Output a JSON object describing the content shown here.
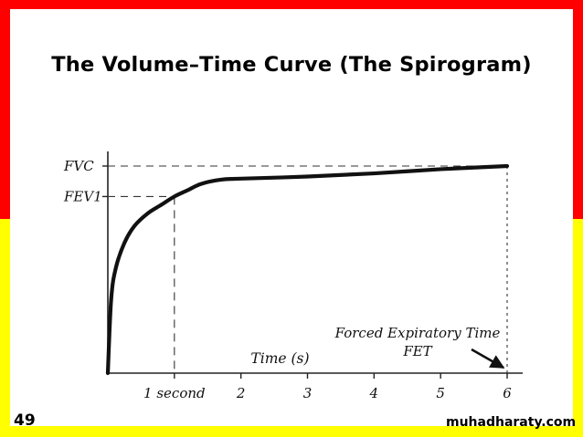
{
  "slide": {
    "title": "The Volume–Time Curve (The Spirogram)",
    "page_number": "49",
    "watermark": "muhadharaty.com",
    "background_color": "#ffff00",
    "top_band_color": "#ff0000"
  },
  "chart_data": {
    "type": "line",
    "title": "",
    "xlabel": "Time (s)",
    "ylabel": "",
    "x_tick_labels": [
      "1 second",
      "2",
      "3",
      "4",
      "5",
      "6"
    ],
    "x_ticks": [
      1,
      2,
      3,
      4,
      5,
      6
    ],
    "y_tick_labels": [
      "FVC",
      "FEV1"
    ],
    "xlim": [
      0,
      6.2
    ],
    "ylim": [
      0,
      1
    ],
    "grid": false,
    "series": [
      {
        "x": [
          0,
          0.05,
          0.12,
          0.25,
          0.4,
          0.6,
          0.8,
          1.0,
          1.2,
          1.4,
          1.7,
          2.0,
          3.0,
          4.0,
          5.0,
          6.0
        ],
        "y": [
          0,
          0.35,
          0.5,
          0.62,
          0.7,
          0.76,
          0.8,
          0.84,
          0.87,
          0.9,
          0.92,
          0.925,
          0.935,
          0.95,
          0.97,
          0.985
        ]
      }
    ],
    "reference_lines": [
      {
        "label": "FVC",
        "y": 0.985,
        "to_x": 6.0
      },
      {
        "label": "FEV1",
        "y": 0.84,
        "to_x": 1.0
      }
    ],
    "annotations": [
      {
        "text": "Forced Expiratory Time",
        "points_to_x": 6.0
      },
      {
        "text": "FET",
        "points_to_x": 6.0
      }
    ]
  }
}
